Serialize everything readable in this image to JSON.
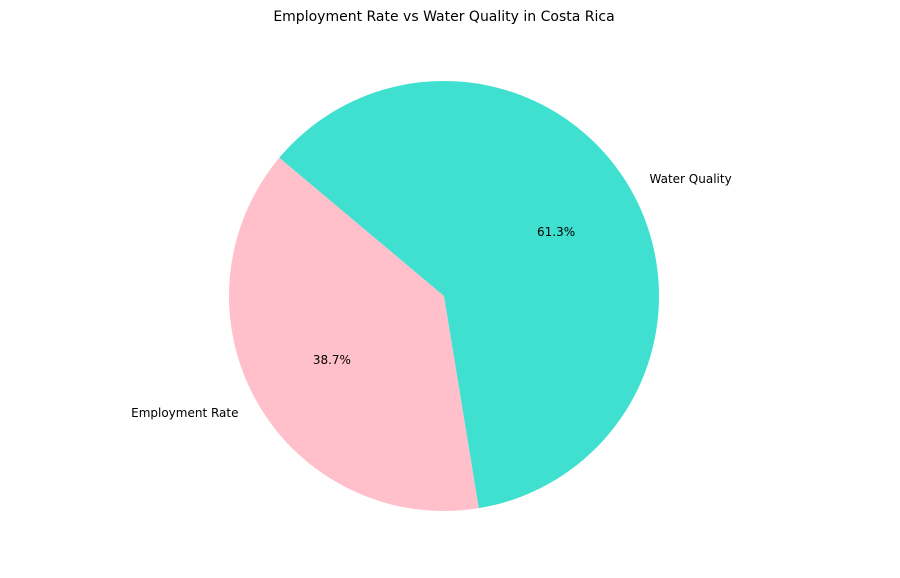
{
  "chart_data": {
    "type": "pie",
    "title": "Employment Rate vs Water Quality in Costa Rica",
    "slices": [
      {
        "label": "Employment Rate",
        "value": 38.7,
        "pct_label": "38.7%",
        "color": "#FFC0CB"
      },
      {
        "label": "Water Quality",
        "value": 61.3,
        "pct_label": "61.3%",
        "color": "#40E0D0"
      }
    ],
    "start_angle_deg": 140,
    "direction": "counterclockwise",
    "legend": "none"
  }
}
